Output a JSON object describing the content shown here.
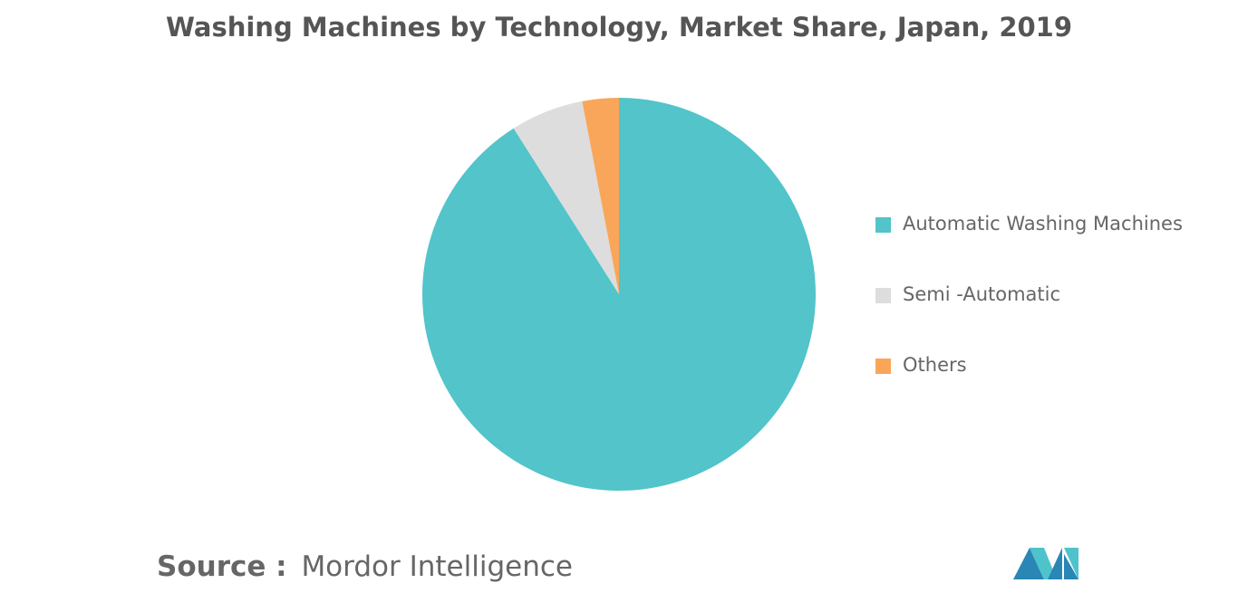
{
  "chart_data": {
    "type": "pie",
    "title": "Washing Machines by Technology, Market Share, Japan, 2019",
    "categories": [
      "Automatic Washing Machines",
      "Semi -Automatic",
      "Others"
    ],
    "values": [
      91,
      6,
      3
    ],
    "colors": [
      "#52c4ca",
      "#dddddd",
      "#f9a65a"
    ],
    "legend": "right"
  },
  "source_label": "Source :",
  "source": "Mordor Intelligence"
}
